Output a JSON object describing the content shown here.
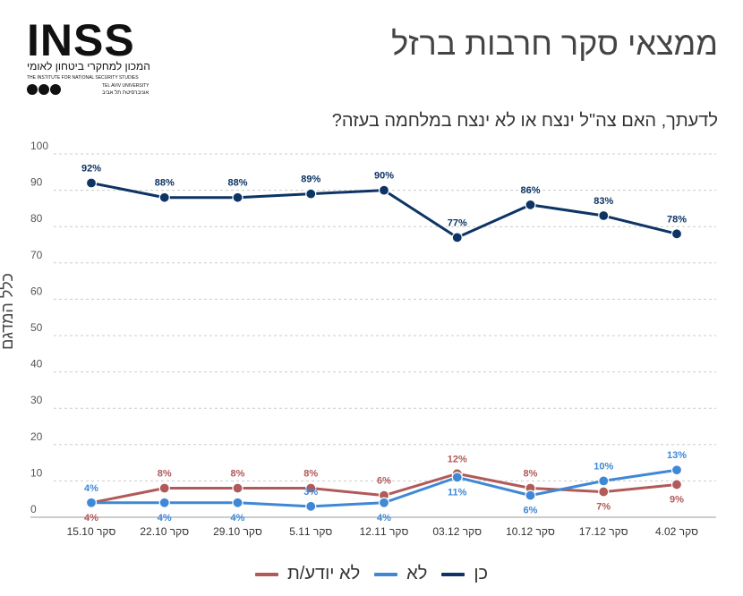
{
  "logo": {
    "main": "INSS",
    "hebrew": "המכון למחקרי ביטחון לאומי",
    "english": "THE INSTITUTE FOR NATIONAL SECURITY STUDIES",
    "university_en": "TEL AVIV UNIVERSITY",
    "university_he": "אוניברסיטת תל אביב"
  },
  "header": {
    "title": "ממצאי סקר חרבות ברזל"
  },
  "question": "לדעתך, האם צה\"ל ינצח או לא ינצח במלחמה בעזה?",
  "chart_data": {
    "type": "line",
    "ylabel": "כלל המדגם",
    "ylim": [
      0,
      100
    ],
    "yticks": [
      0,
      10,
      20,
      30,
      40,
      50,
      60,
      70,
      80,
      90,
      100
    ],
    "grid": true,
    "legend_position": "bottom",
    "categories": [
      "סקר 15.10",
      "סקר 22.10",
      "סקר 29.10",
      "סקר 5.11",
      "סקר 12.11",
      "סקר 03.12",
      "סקר 10.12",
      "סקר 17.12",
      "סקר 4.02"
    ],
    "series": [
      {
        "name": "כן",
        "color": "#0d3464",
        "values": [
          92,
          88,
          88,
          89,
          90,
          77,
          86,
          83,
          78
        ],
        "labels": [
          "92%",
          "88%",
          "88%",
          "89%",
          "90%",
          "77%",
          "86%",
          "83%",
          "78%"
        ],
        "label_pos": "above"
      },
      {
        "name": "לא",
        "color": "#3e88d6",
        "values": [
          4,
          4,
          4,
          3,
          4,
          11,
          6,
          10,
          13
        ],
        "labels": [
          "4%",
          "4%",
          "4%",
          "3%",
          "4%",
          "11%",
          "6%",
          "10%",
          "13%"
        ],
        "label_pos": [
          "above",
          "below",
          "below",
          "above",
          "below",
          "below",
          "below",
          "above",
          "above"
        ]
      },
      {
        "name": "לא יודע/ת",
        "color": "#b05a5a",
        "values": [
          4,
          8,
          8,
          8,
          6,
          12,
          8,
          7,
          9
        ],
        "labels": [
          "4%",
          "8%",
          "8%",
          "8%",
          "6%",
          "12%",
          "8%",
          "7%",
          "9%"
        ],
        "label_pos": [
          "below",
          "above",
          "above",
          "above",
          "above",
          "above",
          "above",
          "below",
          "below"
        ]
      }
    ]
  }
}
